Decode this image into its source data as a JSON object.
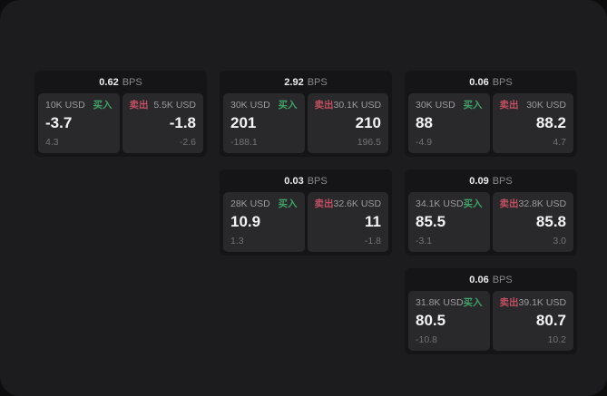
{
  "labels": {
    "bps": "BPS",
    "buy": "买入",
    "sell": "卖出"
  },
  "colors": {
    "buy_green": "#3fa266",
    "sell_red": "#c25062",
    "panel_bg": "#1c1c1e",
    "card_bg": "#151517",
    "subpanel_bg": "#29292b"
  },
  "cards": [
    {
      "bps": "0.62",
      "buy": {
        "amount": "10K USD",
        "value": "-3.7",
        "sub": "4.3"
      },
      "sell": {
        "amount": "5.5K USD",
        "value": "-1.8",
        "sub": "-2.6"
      }
    },
    {
      "bps": "2.92",
      "buy": {
        "amount": "30K USD",
        "value": "201",
        "sub": "-188.1"
      },
      "sell": {
        "amount": "30.1K USD",
        "value": "210",
        "sub": "196.5"
      }
    },
    {
      "bps": "0.03",
      "buy": {
        "amount": "28K USD",
        "value": "10.9",
        "sub": "1.3"
      },
      "sell": {
        "amount": "32.6K USD",
        "value": "11",
        "sub": "-1.8"
      }
    },
    {
      "bps": "0.06",
      "buy": {
        "amount": "30K USD",
        "value": "88",
        "sub": "-4.9"
      },
      "sell": {
        "amount": "30K USD",
        "value": "88.2",
        "sub": "4.7"
      }
    },
    {
      "bps": "0.09",
      "buy": {
        "amount": "34.1K USD",
        "value": "85.5",
        "sub": "-3.1"
      },
      "sell": {
        "amount": "32.8K USD",
        "value": "85.8",
        "sub": "3.0"
      }
    },
    {
      "bps": "0.06",
      "buy": {
        "amount": "31.8K USD",
        "value": "80.5",
        "sub": "-10.8"
      },
      "sell": {
        "amount": "39.1K USD",
        "value": "80.7",
        "sub": "10.2"
      }
    }
  ]
}
